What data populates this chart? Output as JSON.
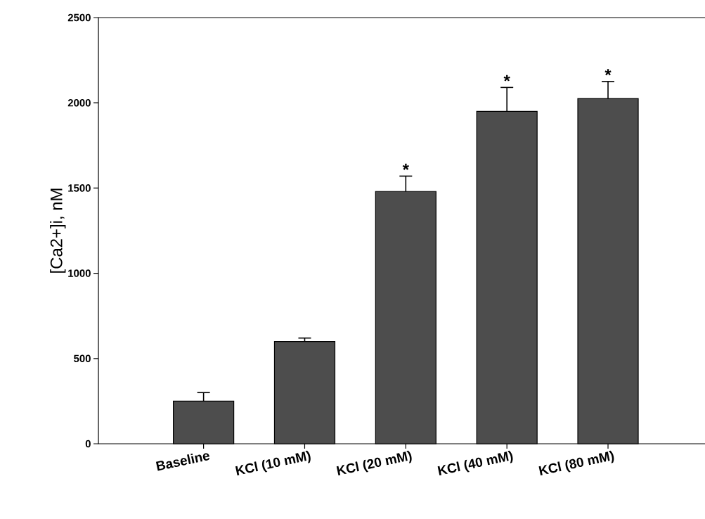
{
  "chart_data": {
    "type": "bar",
    "ylabel": "[Ca2+]i, nM",
    "categories": [
      "Baseline",
      "KCl (10 mM)",
      "KCl (20 mM)",
      "KCl (40 mM)",
      "KCl (80 mM)"
    ],
    "values": [
      250,
      600,
      1480,
      1950,
      2025
    ],
    "errors": [
      [
        250,
        300
      ],
      [
        600,
        620
      ],
      [
        1480,
        1570
      ],
      [
        1950,
        2090
      ],
      [
        2025,
        2125
      ]
    ],
    "color": "#4d4d4d",
    "ylim": [
      0,
      2500
    ],
    "yticks": [
      0,
      500,
      1000,
      1500,
      2000,
      2500
    ],
    "grid": false,
    "annotations": [
      "*",
      "*",
      "*"
    ]
  }
}
